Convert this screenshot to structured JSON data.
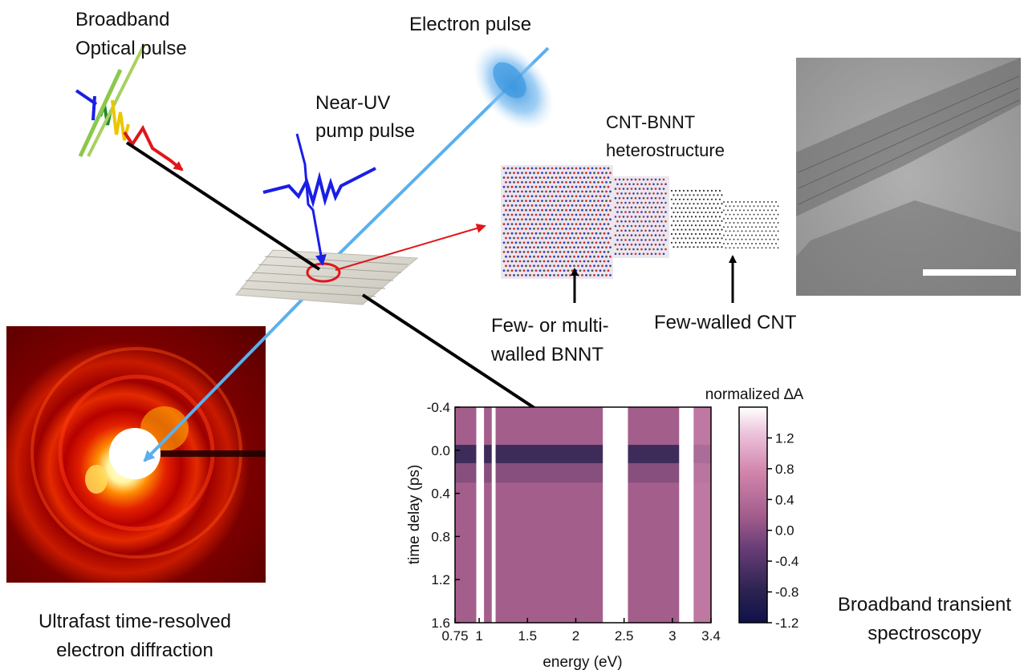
{
  "labels": {
    "broadband_optical_pulse": [
      "Broadband",
      "Optical pulse"
    ],
    "electron_pulse": "Electron pulse",
    "near_uv_pump_pulse": [
      "Near-UV",
      "pump pulse"
    ],
    "heterostructure": [
      "CNT-BNNT",
      "heterostructure"
    ],
    "bnnt_label": [
      "Few- or multi-",
      "walled BNNT"
    ],
    "cnt_label": "Few-walled CNT",
    "diffraction_caption": [
      "Ultrafast time-resolved",
      "electron diffraction"
    ],
    "spectroscopy_caption": [
      "Broadband transient",
      "spectroscopy"
    ]
  },
  "colors": {
    "pump_blue": "#1a1ee6",
    "electron_beam": "#5ab0ee",
    "arrow_red": "#e0161a",
    "map_base": "#a45e8c",
    "map_dark_band": "#2c2350",
    "sem_gray": "#9a9a9a"
  },
  "chart_data": {
    "type": "heatmap",
    "xlabel": "energy (eV)",
    "ylabel": "time delay (ps)",
    "colorbar_label": "normalized ∆A",
    "x_ticks": [
      "0.75",
      "1",
      "1.5",
      "2",
      "2.5",
      "3",
      "3.4"
    ],
    "x_tick_values": [
      0.75,
      1,
      1.5,
      2,
      2.5,
      3,
      3.4
    ],
    "y_ticks": [
      "-0.4",
      "0.0",
      "0.4",
      "0.8",
      "1.2",
      "1.6"
    ],
    "y_tick_values": [
      -0.4,
      0.0,
      0.4,
      0.8,
      1.2,
      1.6
    ],
    "xlim": [
      0.75,
      3.4
    ],
    "ylim": [
      -0.4,
      1.6
    ],
    "y_inverted": true,
    "colorbar_ticks": [
      "1.2",
      "0.8",
      "0.4",
      "0.0",
      "-0.4",
      "-0.8",
      "-1.2"
    ],
    "colorbar_tick_values": [
      1.2,
      0.8,
      0.4,
      0.0,
      -0.4,
      -0.8,
      -1.2
    ],
    "colorbar_range": [
      -1.2,
      1.6
    ],
    "gap_ranges_eV": [
      [
        0.97,
        1.05
      ],
      [
        1.13,
        1.17
      ],
      [
        2.28,
        2.54
      ],
      [
        3.07,
        3.22
      ]
    ],
    "dark_band_delay_ps": [
      -0.05,
      0.12
    ]
  }
}
